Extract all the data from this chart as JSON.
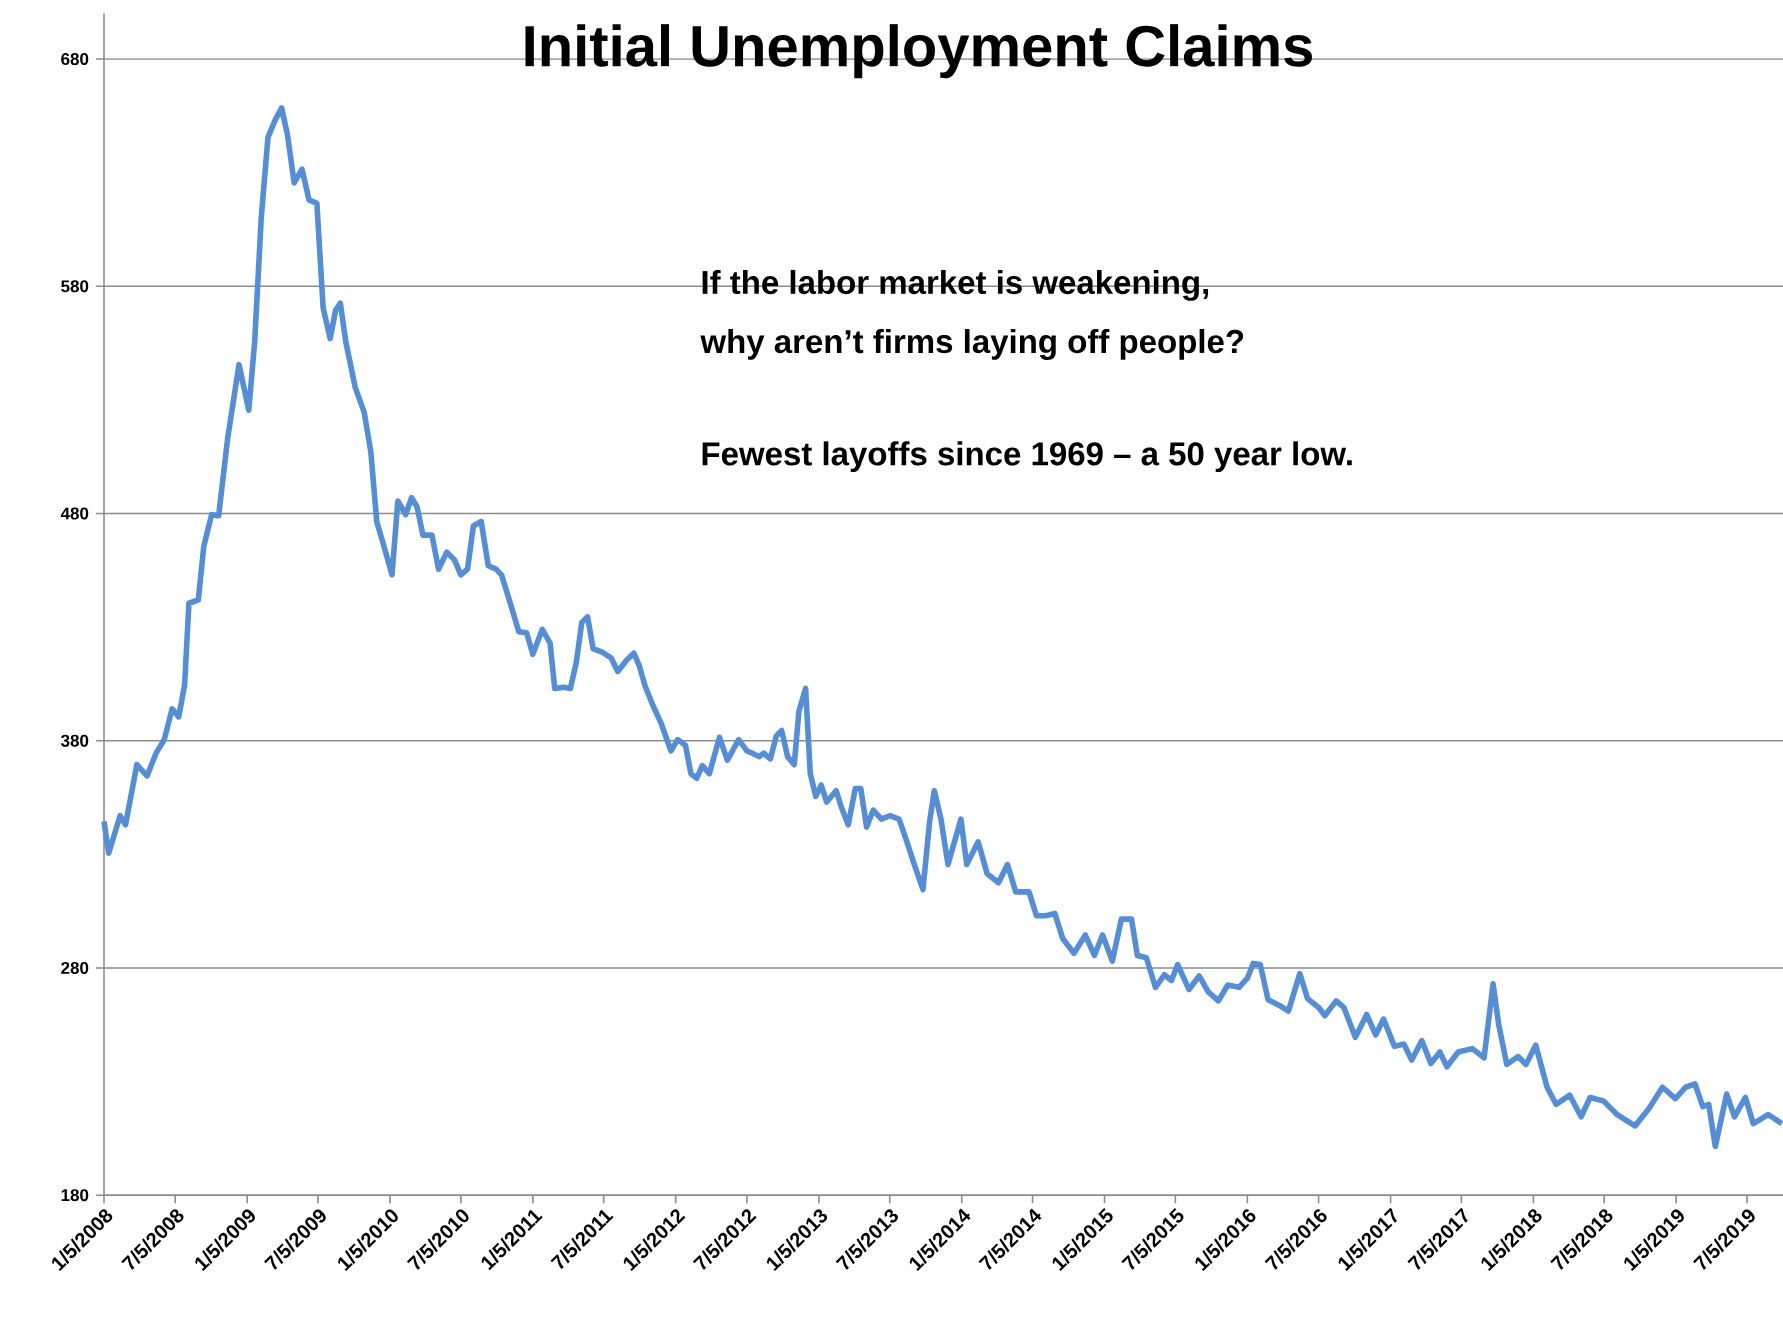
{
  "chart_data": {
    "type": "line",
    "title": "Initial Unemployment Claims",
    "annotations": [
      "If the labor market is weakening,",
      "why aren’t firms laying off people?",
      "Fewest layoffs since 1969 – a 50 year low."
    ],
    "color": "#558ed5",
    "grid": "y",
    "xlim": [
      "2008-01-05",
      "2019-10-05"
    ],
    "ylim": [
      180,
      700
    ],
    "yticks": [
      180,
      280,
      380,
      480,
      580,
      680
    ],
    "xticks": [
      {
        "value": "2008-01-05",
        "label": "1/5/2008"
      },
      {
        "value": "2008-07-05",
        "label": "7/5/2008"
      },
      {
        "value": "2009-01-05",
        "label": "1/5/2009"
      },
      {
        "value": "2009-07-05",
        "label": "7/5/2009"
      },
      {
        "value": "2010-01-05",
        "label": "1/5/2010"
      },
      {
        "value": "2010-07-05",
        "label": "7/5/2010"
      },
      {
        "value": "2011-01-05",
        "label": "1/5/2011"
      },
      {
        "value": "2011-07-05",
        "label": "7/5/2011"
      },
      {
        "value": "2012-01-05",
        "label": "1/5/2012"
      },
      {
        "value": "2012-07-05",
        "label": "7/5/2012"
      },
      {
        "value": "2013-01-05",
        "label": "1/5/2013"
      },
      {
        "value": "2013-07-05",
        "label": "7/5/2013"
      },
      {
        "value": "2014-01-05",
        "label": "1/5/2014"
      },
      {
        "value": "2014-07-05",
        "label": "7/5/2014"
      },
      {
        "value": "2015-01-05",
        "label": "1/5/2015"
      },
      {
        "value": "2015-07-05",
        "label": "7/5/2015"
      },
      {
        "value": "2016-01-05",
        "label": "1/5/2016"
      },
      {
        "value": "2016-07-05",
        "label": "7/5/2016"
      },
      {
        "value": "2017-01-05",
        "label": "1/5/2017"
      },
      {
        "value": "2017-07-05",
        "label": "7/5/2017"
      },
      {
        "value": "2018-01-05",
        "label": "1/5/2018"
      },
      {
        "value": "2018-07-05",
        "label": "7/5/2018"
      },
      {
        "value": "2019-01-05",
        "label": "1/5/2019"
      },
      {
        "value": "2019-07-05",
        "label": "7/5/2019"
      }
    ],
    "x": [
      "2008-01-05",
      "2008-01-17",
      "2008-02-15",
      "2008-02-29",
      "2008-03-29",
      "2008-04-24",
      "2008-05-17",
      "2008-06-07",
      "2008-06-27",
      "2008-07-14",
      "2008-07-29",
      "2008-08-09",
      "2008-09-02",
      "2008-09-16",
      "2008-10-06",
      "2008-10-24",
      "2008-11-16",
      "2008-12-15",
      "2009-01-09",
      "2009-01-24",
      "2009-02-10",
      "2009-02-27",
      "2009-03-17",
      "2009-04-03",
      "2009-04-18",
      "2009-05-05",
      "2009-05-25",
      "2009-06-12",
      "2009-07-02",
      "2009-07-18",
      "2009-08-05",
      "2009-08-19",
      "2009-08-31",
      "2009-09-14",
      "2009-10-08",
      "2009-10-31",
      "2009-11-17",
      "2009-12-02",
      "2009-12-19",
      "2010-01-10",
      "2010-01-25",
      "2010-02-14",
      "2010-03-01",
      "2010-03-15",
      "2010-03-30",
      "2010-04-22",
      "2010-05-09",
      "2010-05-30",
      "2010-06-19",
      "2010-07-05",
      "2010-07-22",
      "2010-08-06",
      "2010-08-26",
      "2010-09-13",
      "2010-10-03",
      "2010-10-17",
      "2010-11-04",
      "2010-11-30",
      "2010-12-20",
      "2011-01-05",
      "2011-01-29",
      "2011-02-18",
      "2011-03-02",
      "2011-03-25",
      "2011-04-11",
      "2011-04-26",
      "2011-05-10",
      "2011-05-25",
      "2011-06-08",
      "2011-07-01",
      "2011-07-24",
      "2011-08-10",
      "2011-09-02",
      "2011-09-20",
      "2011-10-04",
      "2011-10-19",
      "2011-11-08",
      "2011-11-28",
      "2011-12-24",
      "2012-01-10",
      "2012-01-30",
      "2012-02-13",
      "2012-02-28",
      "2012-03-13",
      "2012-03-31",
      "2012-04-26",
      "2012-05-16",
      "2012-06-14",
      "2012-07-05",
      "2012-07-19",
      "2012-08-05",
      "2012-08-17",
      "2012-09-03",
      "2012-09-18",
      "2012-10-02",
      "2012-10-17",
      "2012-11-03",
      "2012-11-15",
      "2012-12-02",
      "2012-12-14",
      "2012-12-28",
      "2013-01-11",
      "2013-01-25",
      "2013-02-18",
      "2013-03-04",
      "2013-03-21",
      "2013-04-08",
      "2013-04-22",
      "2013-05-07",
      "2013-05-24",
      "2013-06-14",
      "2013-07-05",
      "2013-07-29",
      "2013-08-18",
      "2013-09-04",
      "2013-09-28",
      "2013-10-15",
      "2013-10-27",
      "2013-11-13",
      "2013-12-01",
      "2014-01-03",
      "2014-01-18",
      "2014-02-16",
      "2014-03-11",
      "2014-04-09",
      "2014-05-02",
      "2014-05-23",
      "2014-06-26",
      "2014-07-15",
      "2014-08-08",
      "2014-08-31",
      "2014-09-20",
      "2014-10-19",
      "2014-11-17",
      "2014-12-10",
      "2014-12-31",
      "2015-01-25",
      "2015-02-17",
      "2015-03-15",
      "2015-03-30",
      "2015-04-22",
      "2015-05-15",
      "2015-06-07",
      "2015-06-25",
      "2015-07-11",
      "2015-08-09",
      "2015-09-04",
      "2015-09-27",
      "2015-10-23",
      "2015-11-16",
      "2015-12-15",
      "2016-01-05",
      "2016-01-20",
      "2016-02-07",
      "2016-02-27",
      "2016-03-27",
      "2016-04-19",
      "2016-05-18",
      "2016-06-07",
      "2016-07-06",
      "2016-07-21",
      "2016-08-19",
      "2016-09-08",
      "2016-10-07",
      "2016-11-05",
      "2016-11-28",
      "2016-12-18",
      "2017-01-15",
      "2017-02-08",
      "2017-02-28",
      "2017-03-26",
      "2017-04-18",
      "2017-05-11",
      "2017-05-29",
      "2017-06-27",
      "2017-08-02",
      "2017-09-01",
      "2017-09-24",
      "2017-10-08",
      "2017-10-29",
      "2017-11-27",
      "2017-12-17",
      "2018-01-11",
      "2018-02-09",
      "2018-03-04",
      "2018-04-08",
      "2018-05-07",
      "2018-05-30",
      "2018-07-03",
      "2018-08-07",
      "2018-09-22",
      "2018-10-27",
      "2018-12-01",
      "2019-01-03",
      "2019-01-29",
      "2019-02-22",
      "2019-03-14",
      "2019-03-29",
      "2019-04-15",
      "2019-05-14",
      "2019-06-03",
      "2019-07-01",
      "2019-07-21",
      "2019-08-28",
      "2019-10-02"
    ],
    "values": [
      344.5,
      330.5,
      347,
      343,
      369.5,
      364.5,
      374.5,
      380.5,
      394,
      390.5,
      404.5,
      440.5,
      442,
      465.5,
      479.5,
      479,
      513,
      545.5,
      525.5,
      555.5,
      610.5,
      645.5,
      653,
      658.5,
      646.5,
      625.5,
      631.5,
      618,
      616.5,
      570.5,
      557,
      569.5,
      572.5,
      555.5,
      535.5,
      524.5,
      507,
      476.5,
      466.5,
      453,
      485.5,
      479.5,
      487,
      483,
      470.5,
      470.5,
      455.5,
      463,
      459.5,
      453,
      455.5,
      474.5,
      476.5,
      457,
      455.5,
      453,
      443,
      428,
      427.5,
      418,
      429,
      423,
      403,
      403.5,
      403,
      414.5,
      432,
      434.5,
      420.5,
      419,
      416.5,
      410.5,
      415.5,
      418.5,
      413,
      404,
      395.5,
      388,
      375.5,
      380.5,
      378,
      365.5,
      363.5,
      369,
      365.5,
      381.5,
      371.5,
      380.5,
      375.5,
      374.5,
      373,
      374.5,
      372,
      382,
      384.5,
      373,
      369.5,
      393,
      403,
      365.5,
      355.5,
      360.5,
      353,
      358,
      350.5,
      343,
      359,
      359,
      342,
      349.5,
      345.5,
      347,
      345.5,
      335.5,
      326.5,
      314.5,
      344.5,
      358,
      345.5,
      325.5,
      345.5,
      325.5,
      335.5,
      321.5,
      317.5,
      325.5,
      313.5,
      313.5,
      303,
      303,
      304,
      293,
      286.5,
      294.5,
      285.5,
      294.5,
      283,
      301.5,
      301.5,
      285.5,
      284.5,
      271.5,
      277,
      274.5,
      281.5,
      270.5,
      276.5,
      269.5,
      265.5,
      272.5,
      271.5,
      275.5,
      282,
      281.5,
      266,
      263.5,
      261,
      277.5,
      266.5,
      262.5,
      259,
      265.5,
      262.5,
      249.5,
      259.5,
      250.5,
      257.5,
      245.5,
      246.5,
      239.5,
      248,
      238,
      243,
      236.5,
      243,
      244.5,
      240.5,
      273,
      255.5,
      237.5,
      241,
      237.5,
      246,
      227.5,
      220,
      224,
      214.5,
      223,
      221.5,
      215.5,
      210.5,
      218,
      227.5,
      222.5,
      227.5,
      229,
      219,
      220,
      201.5,
      224.5,
      214.5,
      223,
      211.5,
      215.5,
      211.5
    ]
  }
}
